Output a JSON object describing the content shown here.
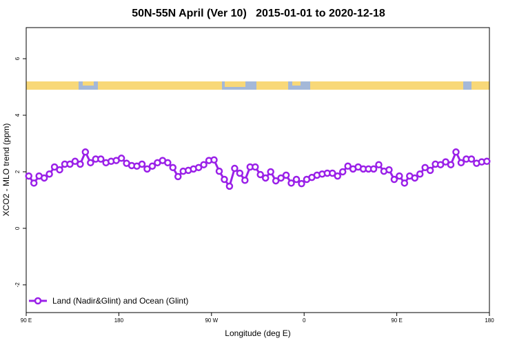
{
  "chart_data": {
    "type": "line",
    "title": "50N-55N April (Ver 10)   2015-01-01 to 2020-12-18",
    "x_label": "Longitude (deg E)",
    "y_label": "XCO2 - MLO trend (ppm)",
    "xlim": [
      90,
      540
    ],
    "xticks": [
      {
        "value": 90,
        "label": "90 E"
      },
      180,
      {
        "value": 270,
        "label": "90 W"
      },
      {
        "value": 360,
        "label": "0"
      },
      {
        "value": 450,
        "label": "90 E"
      },
      {
        "value": 540,
        "label": "180"
      }
    ],
    "ylim": [
      -2.98,
      7.1
    ],
    "yticks": [
      -2,
      0,
      2,
      4,
      6
    ],
    "legend_position": "bottom-left",
    "x": [
      92.5,
      97.5,
      102.5,
      107.5,
      112.5,
      117.5,
      122.5,
      127.5,
      132.5,
      137.5,
      142.5,
      147.5,
      152.5,
      157.5,
      162.5,
      167.5,
      172.5,
      177.5,
      182.5,
      187.5,
      192.5,
      197.5,
      202.5,
      207.5,
      212.5,
      217.5,
      222.5,
      227.5,
      232.5,
      237.5,
      242.5,
      247.5,
      252.5,
      257.5,
      262.5,
      267.5,
      272.5,
      277.5,
      282.5,
      287.5,
      292.5,
      297.5,
      302.5,
      307.5,
      312.5,
      317.5,
      322.5,
      327.5,
      332.5,
      337.5,
      342.5,
      347.5,
      352.5,
      357.5,
      362.5,
      367.5,
      372.5,
      377.5,
      382.5,
      387.5,
      392.5,
      397.5,
      402.5,
      407.5,
      412.5,
      417.5,
      422.5,
      427.5,
      432.5,
      437.5,
      442.5,
      447.5,
      452.5,
      457.5,
      462.5,
      467.5,
      472.5,
      477.5,
      482.5,
      487.5,
      492.5,
      497.5,
      502.5,
      507.5,
      512.5,
      517.5,
      522.5,
      527.5,
      532.5,
      537.5
    ],
    "series": [
      {
        "name": "Land (Nadir&Glint) and Ocean (Glint)",
        "color": "#9a20e8",
        "values": [
          1.85,
          1.6,
          1.85,
          1.78,
          1.92,
          2.17,
          2.07,
          2.27,
          2.27,
          2.37,
          2.27,
          2.7,
          2.32,
          2.45,
          2.45,
          2.32,
          2.37,
          2.4,
          2.48,
          2.3,
          2.22,
          2.2,
          2.27,
          2.1,
          2.2,
          2.32,
          2.4,
          2.32,
          2.15,
          1.83,
          2.02,
          2.05,
          2.1,
          2.15,
          2.25,
          2.4,
          2.42,
          2.02,
          1.73,
          1.49,
          2.12,
          1.95,
          1.7,
          2.17,
          2.17,
          1.9,
          1.78,
          2.0,
          1.68,
          1.78,
          1.88,
          1.6,
          1.73,
          1.58,
          1.73,
          1.8,
          1.88,
          1.92,
          1.95,
          1.95,
          1.85,
          2.0,
          2.2,
          2.1,
          2.17,
          2.1,
          2.1,
          2.1,
          2.25,
          2.02,
          2.07,
          1.73,
          1.85,
          1.6,
          1.85,
          1.78,
          1.92,
          2.15,
          2.05,
          2.27,
          2.25,
          2.35,
          2.25,
          2.7,
          2.32,
          2.45,
          2.45,
          2.3,
          2.35,
          2.37
        ]
      }
    ]
  }
}
